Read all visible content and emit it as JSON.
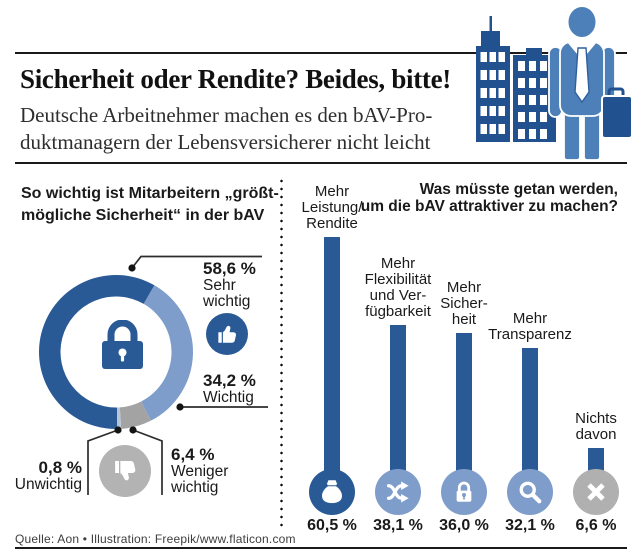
{
  "colors": {
    "dark_blue": "#2a5a96",
    "light_blue": "#7f9dca",
    "steel_blue": "#4d80b8",
    "navy": "#21518f",
    "gray_circle": "#b3b3b3",
    "donut_gray": "#a3a3a3",
    "pale_blue_gray": "#b9c6da",
    "text": "#1a1a1a"
  },
  "header": {
    "title": "Sicherheit oder Rendite? Beides, bitte!",
    "subtitle": "Deutsche Arbeitnehmer machen es den bAV-Pro-\nduktmanagern der Lebensversicherer nicht leicht"
  },
  "donut_section": {
    "title": "So wichtig ist Mitarbeitern „größt-\nmögliche Sicherheit“ in der bAV"
  },
  "bar_section": {
    "title": "Was müsste getan werden,\num die bAV attraktiver zu machen?"
  },
  "chart_data": [
    {
      "type": "pie",
      "subtype": "donut",
      "title": "So wichtig ist Mitarbeitern „größtmögliche Sicherheit“ in der bAV",
      "start_angle_deg": 179,
      "center_icon": "lock",
      "segments": [
        {
          "label": "Sehr\nwichtig",
          "value": 58.6,
          "value_label": "58,6 %",
          "color": "#2a5a96",
          "icon": "thumbs-up"
        },
        {
          "label": "Wichtig",
          "value": 34.2,
          "value_label": "34,2 %",
          "color": "#7f9dca",
          "icon": ""
        },
        {
          "label": "Weniger\nwichtig",
          "value": 6.4,
          "value_label": "6,4 %",
          "color": "#a3a3a3",
          "icon": "thumbs-down"
        },
        {
          "label": "Unwichtig",
          "value": 0.8,
          "value_label": "0,8 %",
          "color": "#b9c6da",
          "icon": ""
        }
      ]
    },
    {
      "type": "bar",
      "title": "Was müsste getan werden, um die bAV attraktiver zu machen?",
      "categories": [
        "Mehr\nLeistung/\nRendite",
        "Mehr\nFlexibilität\nund Ver-\nfügbarkeit",
        "Mehr\nSicher-\nheit",
        "Mehr\nTransparenz",
        "Nichts\ndavon"
      ],
      "values": [
        60.5,
        38.1,
        36.0,
        32.1,
        6.6
      ],
      "value_labels": [
        "60,5 %",
        "38,1 %",
        "36,0 %",
        "32,1 %",
        "6,6 %"
      ],
      "bar_color": "#2a5a96",
      "icons": [
        "money-bag",
        "shuffle",
        "lock",
        "magnifier",
        "cross"
      ],
      "icon_circle_colors": [
        "#2a5a96",
        "#7f9dca",
        "#7f9dca",
        "#7f9dca",
        "#b0b0b0"
      ],
      "ylim": [
        0,
        65
      ],
      "grid": false,
      "legend": false
    }
  ],
  "source": "Quelle: Aon • Illustration: Freepik/www.flaticon.com"
}
